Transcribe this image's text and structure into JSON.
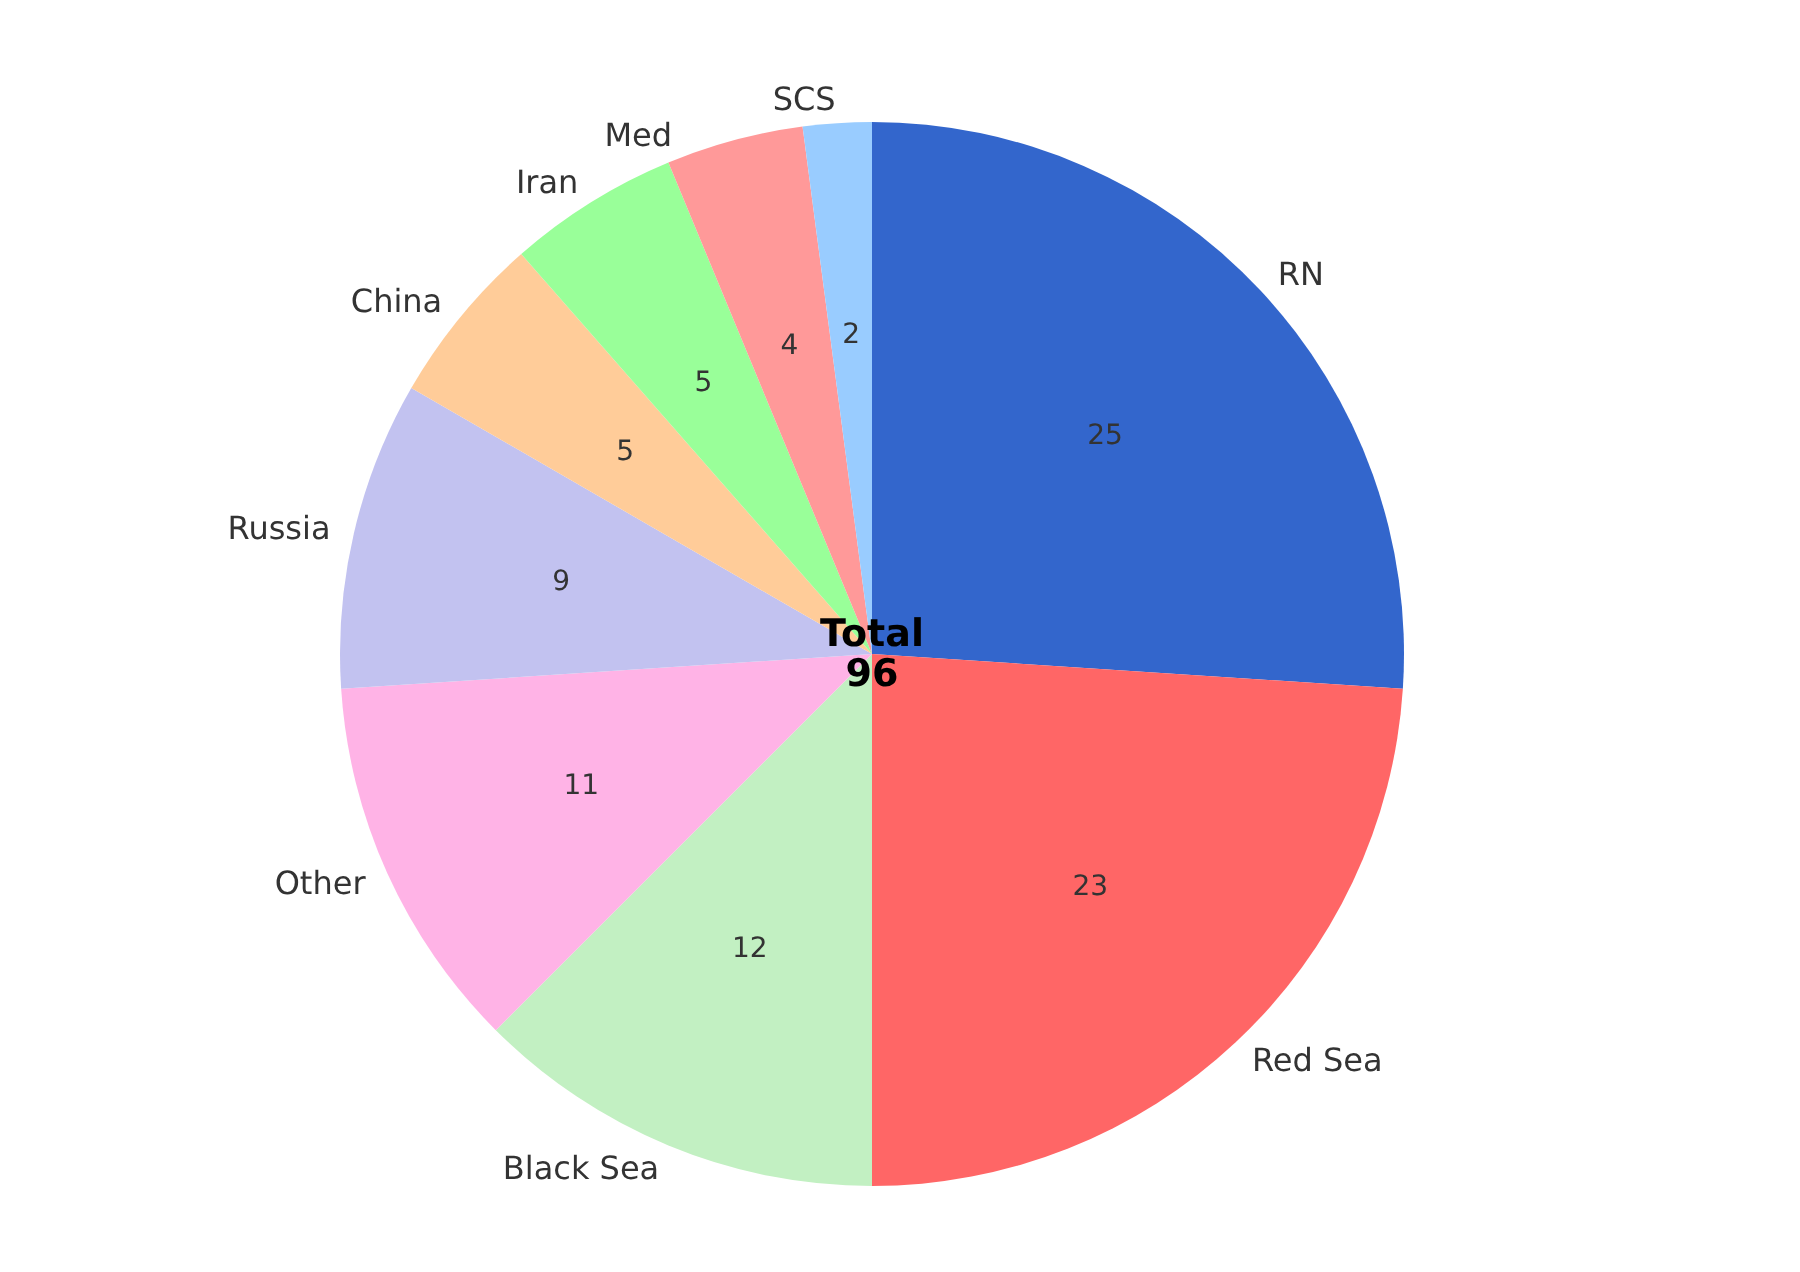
{
  "chart_data": {
    "type": "pie",
    "categories": [
      "RN",
      "Red Sea",
      "Black Sea",
      "Other",
      "Russia",
      "China",
      "Iran",
      "Med",
      "SCS"
    ],
    "values": [
      25,
      23,
      12,
      11,
      9,
      5,
      5,
      4,
      2
    ],
    "colors": [
      "#3366cc",
      "#ff6666",
      "#c2f0c2",
      "#ffb3e6",
      "#c2c2f0",
      "#ffcc99",
      "#99ff99",
      "#ff9999",
      "#99ccff"
    ],
    "data_labels": true,
    "legend": false,
    "annotations": [
      "Total\n96"
    ]
  }
}
